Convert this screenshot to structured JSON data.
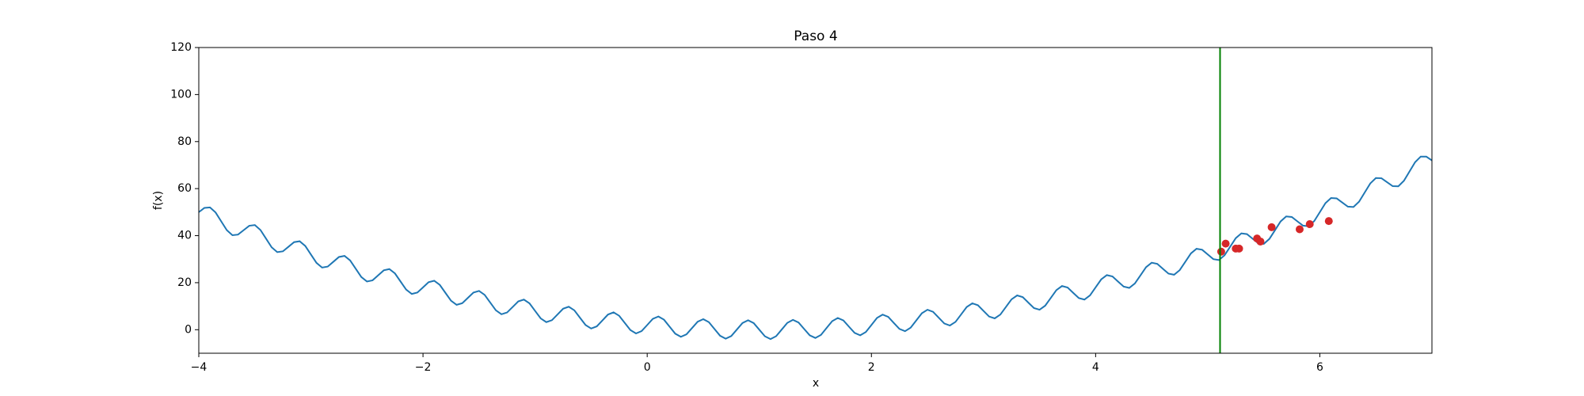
{
  "chart_data": {
    "type": "line",
    "title": "Paso 4",
    "x_label": "x",
    "y_label": "f(x)",
    "xlim": [
      -4,
      7
    ],
    "ylim": [
      -10,
      120
    ],
    "xticks": [
      {
        "value": -4,
        "label": "−4"
      },
      {
        "value": -2,
        "label": "−2"
      },
      0,
      2,
      4,
      6
    ],
    "yticks": [
      0,
      20,
      40,
      60,
      80,
      100,
      120
    ],
    "grid": false,
    "vertical_line": {
      "x": 5.11,
      "color": "#008000"
    },
    "series": [
      {
        "type": "line",
        "color": "#1f77b4",
        "x": [
          -4,
          -3.95,
          -3.9,
          -3.85,
          -3.8,
          -3.75,
          -3.7,
          -3.65,
          -3.6,
          -3.55,
          -3.5,
          -3.45,
          -3.4,
          -3.35,
          -3.3,
          -3.25,
          -3.2,
          -3.15,
          -3.1,
          -3.05,
          -3,
          -2.95,
          -2.9,
          -2.85,
          -2.8,
          -2.75,
          -2.7,
          -2.65,
          -2.6,
          -2.55,
          -2.5,
          -2.45,
          -2.4,
          -2.35,
          -2.3,
          -2.25,
          -2.2,
          -2.15,
          -2.1,
          -2.05,
          -2,
          -1.95,
          -1.9,
          -1.85,
          -1.8,
          -1.75,
          -1.7,
          -1.65,
          -1.6,
          -1.55,
          -1.5,
          -1.45,
          -1.4,
          -1.35,
          -1.3,
          -1.25,
          -1.2,
          -1.15,
          -1.1,
          -1.05,
          -1,
          -0.95,
          -0.9,
          -0.85,
          -0.8,
          -0.75,
          -0.7,
          -0.65,
          -0.6,
          -0.55,
          -0.5,
          -0.45,
          -0.4,
          -0.35,
          -0.3,
          -0.25,
          -0.2,
          -0.15,
          -0.1,
          -0.05,
          0,
          0.05,
          0.1,
          0.15,
          0.2,
          0.25,
          0.3,
          0.35,
          0.4,
          0.45,
          0.5,
          0.55,
          0.6,
          0.65,
          0.7,
          0.75,
          0.8,
          0.85,
          0.9,
          0.95,
          1,
          1.05,
          1.1,
          1.15,
          1.2,
          1.25,
          1.3,
          1.35,
          1.4,
          1.45,
          1.5,
          1.55,
          1.6,
          1.65,
          1.7,
          1.75,
          1.8,
          1.85,
          1.9,
          1.95,
          2,
          2.05,
          2.1,
          2.15,
          2.2,
          2.25,
          2.3,
          2.35,
          2.4,
          2.45,
          2.5,
          2.55,
          2.6,
          2.65,
          2.7,
          2.75,
          2.8,
          2.85,
          2.9,
          2.95,
          3,
          3.05,
          3.1,
          3.15,
          3.2,
          3.25,
          3.3,
          3.35,
          3.4,
          3.45,
          3.5,
          3.55,
          3.6,
          3.65,
          3.7,
          3.75,
          3.8,
          3.85,
          3.9,
          3.95,
          4,
          4.05,
          4.1,
          4.15,
          4.2,
          4.25,
          4.3,
          4.35,
          4.4,
          4.45,
          4.5,
          4.55,
          4.6,
          4.65,
          4.7,
          4.75,
          4.8,
          4.85,
          4.9,
          4.95,
          5,
          5.05,
          5.1,
          5.15,
          5.2,
          5.25,
          5.3,
          5.35,
          5.4,
          5.45,
          5.5,
          5.55,
          5.6,
          5.65,
          5.7,
          5.75,
          5.8,
          5.85,
          5.9,
          5.95,
          6,
          6.05,
          6.1,
          6.15,
          6.2,
          6.25,
          6.3,
          6.35,
          6.4,
          6.45,
          6.5,
          6.55,
          6.6,
          6.65,
          6.7,
          6.75,
          6.8,
          6.85,
          6.9,
          6.95,
          7
        ],
        "values": [
          50,
          51.8,
          52.02,
          49.85,
          46.08,
          42.33,
          40.18,
          40.45,
          42.32,
          44.21,
          44.5,
          42.41,
          38.72,
          35.05,
          32.98,
          33.33,
          35.28,
          37.25,
          37.62,
          35.61,
          32,
          28.41,
          26.42,
          26.85,
          28.88,
          30.93,
          31.38,
          29.45,
          25.92,
          22.41,
          20.5,
          21.01,
          23.12,
          25.25,
          25.78,
          23.93,
          20.48,
          17.05,
          15.22,
          15.81,
          18,
          20.21,
          20.82,
          19.05,
          15.68,
          12.33,
          10.58,
          11.25,
          13.52,
          15.81,
          16.5,
          14.81,
          11.52,
          8.25,
          6.58,
          7.33,
          9.68,
          12.05,
          12.82,
          11.21,
          8,
          4.81,
          3.22,
          4.05,
          6.48,
          8.93,
          9.78,
          8.25,
          5.12,
          2.01,
          0.5,
          1.41,
          3.92,
          6.45,
          7.38,
          5.93,
          2.88,
          -0.16,
          -1.58,
          -0.6,
          2,
          4.61,
          5.62,
          4.25,
          1.28,
          -1.68,
          -3.02,
          -1.96,
          0.72,
          3.41,
          4.5,
          3.21,
          0.32,
          -2.56,
          -3.82,
          -2.68,
          0.08,
          2.85,
          4.02,
          2.81,
          0,
          -2.8,
          -3.98,
          -2.76,
          0.08,
          2.93,
          4.18,
          3.05,
          0.32,
          -2.4,
          -3.5,
          -2.2,
          0.72,
          3.65,
          4.98,
          3.93,
          1.28,
          -1.36,
          -2.38,
          -1,
          2,
          5.01,
          6.42,
          5.45,
          2.88,
          0.33,
          -0.62,
          0.85,
          3.92,
          7.01,
          8.5,
          7.61,
          5.12,
          2.65,
          1.78,
          3.33,
          6.48,
          9.65,
          11.22,
          10.41,
          8,
          5.61,
          4.82,
          6.45,
          9.68,
          12.93,
          14.58,
          13.85,
          11.52,
          9.21,
          8.5,
          10.21,
          13.52,
          16.85,
          18.58,
          17.93,
          15.68,
          13.45,
          12.82,
          14.61,
          18,
          21.41,
          23.22,
          22.65,
          20.48,
          18.33,
          17.78,
          19.65,
          23.12,
          26.61,
          28.5,
          28.01,
          25.92,
          23.85,
          23.38,
          25.33,
          28.88,
          32.45,
          34.42,
          34.01,
          32,
          30.01,
          29.62,
          31.65,
          35.28,
          38.93,
          40.98,
          40.65,
          38.72,
          36.81,
          36.5,
          38.61,
          42.32,
          46.05,
          48.18,
          47.93,
          46.08,
          44.25,
          44.02,
          46.21,
          50,
          53.81,
          56.02,
          55.85,
          54.08,
          52.33,
          52.18,
          54.45,
          58.32,
          62.21,
          64.5,
          64.41,
          62.72,
          61.05,
          60.98,
          63.33,
          67.28,
          71.25,
          73.62,
          73.61,
          72
        ]
      },
      {
        "type": "scatter",
        "color": "#d62728",
        "x": [
          5.12,
          5.16,
          5.25,
          5.28,
          5.44,
          5.47,
          5.57,
          5.82,
          5.91,
          6.08
        ],
        "values": [
          33.2,
          36.6,
          34.5,
          34.5,
          38.8,
          37.5,
          43.6,
          42.7,
          44.9,
          46.2
        ]
      }
    ]
  }
}
